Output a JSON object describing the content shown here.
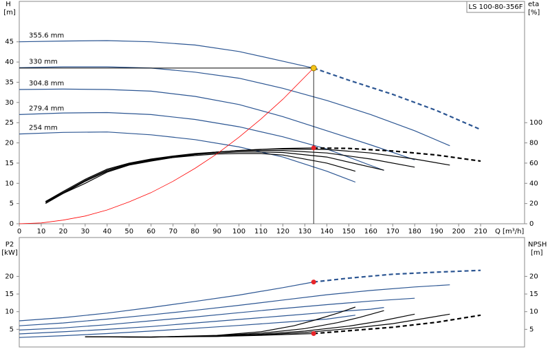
{
  "chart_data": [
    {
      "type": "line",
      "title": "LS 100-80-356F",
      "x_label": "Q [m³/h]",
      "y_label": "H",
      "y_unit": "[m]",
      "y2_label": "eta",
      "y2_unit": "[%]",
      "xlim": [
        0,
        230
      ],
      "xticks": [
        0,
        10,
        20,
        30,
        40,
        50,
        60,
        70,
        80,
        90,
        100,
        110,
        120,
        130,
        140,
        150,
        160,
        170,
        180,
        190,
        200,
        210
      ],
      "ylim": [
        0,
        55
      ],
      "yticks": [
        0,
        5,
        10,
        15,
        20,
        25,
        30,
        35,
        40,
        45
      ],
      "y2lim": [
        0,
        220
      ],
      "y2ticks": [
        0,
        20,
        40,
        60,
        80,
        100
      ],
      "grid": false,
      "duty_point": {
        "x": 134,
        "y": 38.5,
        "color": "#f5c518"
      },
      "markers": [
        {
          "x": 134,
          "value": 75,
          "axis": "y2",
          "color": "#e8262a"
        }
      ],
      "series": [
        {
          "name": "355.6 mm",
          "color": "#2b5592",
          "dash_start": 7,
          "x": [
            0,
            20,
            40,
            60,
            80,
            100,
            120,
            134,
            150,
            170,
            190,
            210
          ],
          "values": [
            45,
            45.2,
            45.3,
            45,
            44.2,
            42.6,
            40.2,
            38.5,
            35.5,
            32,
            28,
            23.3
          ]
        },
        {
          "name": "330 mm",
          "color": "#2b5592",
          "x": [
            0,
            20,
            40,
            60,
            80,
            100,
            120,
            140,
            160,
            180,
            196
          ],
          "values": [
            38.6,
            38.8,
            38.8,
            38.5,
            37.5,
            36,
            33.5,
            30.5,
            27,
            23,
            19.3
          ]
        },
        {
          "name": "304.8 mm",
          "color": "#2b5592",
          "x": [
            0,
            20,
            40,
            60,
            80,
            100,
            120,
            140,
            160,
            180
          ],
          "values": [
            33.2,
            33.3,
            33.2,
            32.8,
            31.5,
            29.5,
            26.5,
            23,
            19.5,
            15.8
          ]
        },
        {
          "name": "279.4 mm",
          "color": "#2b5592",
          "x": [
            0,
            20,
            40,
            60,
            80,
            100,
            120,
            140,
            166
          ],
          "values": [
            27,
            27.4,
            27.5,
            27,
            25.8,
            24,
            21.5,
            18.5,
            13.2
          ]
        },
        {
          "name": "254 mm",
          "color": "#2b5592",
          "x": [
            0,
            20,
            40,
            60,
            80,
            100,
            120,
            140,
            153
          ],
          "values": [
            22.2,
            22.6,
            22.7,
            22,
            20.8,
            19,
            16.5,
            13,
            10.3
          ]
        },
        {
          "color": "#000000",
          "axis": "y2",
          "dash_start": 12,
          "x": [
            14,
            20,
            30,
            40,
            50,
            60,
            70,
            80,
            90,
            100,
            110,
            120,
            134,
            150,
            170,
            190,
            210
          ],
          "values": [
            23,
            30,
            40,
            51,
            58,
            62,
            65.5,
            68.5,
            71,
            72.5,
            73.6,
            74.5,
            75,
            74.5,
            72,
            68,
            62
          ]
        },
        {
          "color": "#000000",
          "axis": "y2",
          "x": [
            12,
            20,
            30,
            40,
            50,
            60,
            70,
            80,
            90,
            100,
            110,
            120,
            140,
            160,
            180,
            196
          ],
          "values": [
            22,
            31,
            42,
            52,
            59,
            63,
            66,
            69,
            71,
            72.5,
            73.5,
            74,
            73.5,
            70,
            64,
            58
          ]
        },
        {
          "color": "#000000",
          "axis": "y2",
          "x": [
            12,
            20,
            30,
            40,
            50,
            60,
            70,
            80,
            90,
            100,
            110,
            120,
            140,
            160,
            180
          ],
          "values": [
            22,
            32,
            44,
            54,
            60,
            64,
            67,
            69.5,
            71,
            72,
            72.5,
            72.5,
            70,
            64,
            56
          ]
        },
        {
          "color": "#000000",
          "axis": "y2",
          "x": [
            12,
            20,
            30,
            40,
            50,
            60,
            70,
            80,
            90,
            100,
            110,
            120,
            140,
            166
          ],
          "values": [
            21,
            31,
            43,
            53,
            59.5,
            63.5,
            66.5,
            68.5,
            70,
            71,
            71,
            70.5,
            66,
            53
          ]
        },
        {
          "color": "#000000",
          "axis": "y2",
          "x": [
            12,
            20,
            30,
            40,
            50,
            60,
            70,
            80,
            90,
            100,
            110,
            120,
            140,
            153
          ],
          "values": [
            20,
            30,
            42,
            52,
            58.5,
            62.5,
            65.5,
            67.5,
            69,
            69.5,
            69.5,
            68,
            60,
            52
          ]
        },
        {
          "color": "#ff0000",
          "thin": true,
          "x": [
            0,
            10,
            20,
            30,
            40,
            50,
            60,
            70,
            80,
            90,
            100,
            110,
            120,
            134
          ],
          "values": [
            0,
            0.2,
            0.9,
            1.9,
            3.4,
            5.4,
            7.7,
            10.5,
            13.7,
            17.3,
            21.4,
            25.9,
            30.8,
            38.5
          ]
        }
      ]
    },
    {
      "type": "line",
      "y_label": "P2",
      "y_unit": "[kW]",
      "y2_label": "NPSH",
      "y2_unit": "[m]",
      "xlim": [
        0,
        230
      ],
      "ylim": [
        0,
        31
      ],
      "yticks": [
        5,
        10,
        15,
        20
      ],
      "y2lim": [
        0,
        31
      ],
      "y2ticks": [
        5,
        10,
        15,
        20
      ],
      "grid": false,
      "markers": [
        {
          "x": 134,
          "value": 18.4,
          "color": "#e8262a"
        },
        {
          "x": 134,
          "value": 3.8,
          "axis": "y2",
          "color": "#e8262a"
        }
      ],
      "series": [
        {
          "color": "#2b5592",
          "dash_start": 7,
          "x": [
            0,
            20,
            40,
            60,
            80,
            100,
            120,
            134,
            150,
            170,
            190,
            210
          ],
          "values": [
            7.4,
            8.3,
            9.6,
            11.2,
            12.9,
            14.7,
            16.8,
            18.4,
            19.5,
            20.6,
            21.2,
            21.7
          ]
        },
        {
          "color": "#2b5592",
          "x": [
            0,
            20,
            40,
            60,
            80,
            100,
            120,
            140,
            160,
            180,
            196
          ],
          "values": [
            6,
            6.8,
            7.9,
            9.1,
            10.4,
            11.8,
            13.3,
            14.8,
            16,
            17,
            17.6
          ]
        },
        {
          "color": "#2b5592",
          "x": [
            0,
            20,
            40,
            60,
            80,
            100,
            120,
            140,
            160,
            180
          ],
          "values": [
            4.8,
            5.4,
            6.3,
            7.4,
            8.5,
            9.7,
            10.9,
            12,
            13,
            13.8
          ]
        },
        {
          "color": "#2b5592",
          "x": [
            0,
            20,
            40,
            60,
            80,
            100,
            120,
            140,
            160,
            166
          ],
          "values": [
            3.7,
            4.3,
            5,
            5.8,
            6.8,
            7.8,
            8.8,
            9.8,
            10.7,
            11.2
          ]
        },
        {
          "color": "#2b5592",
          "x": [
            0,
            20,
            40,
            60,
            80,
            100,
            120,
            140,
            153
          ],
          "values": [
            2.7,
            3.2,
            3.8,
            4.5,
            5.3,
            6.1,
            7,
            7.9,
            9
          ]
        },
        {
          "color": "#000000",
          "axis": "y2",
          "dash_start": 5,
          "x": [
            30,
            50,
            70,
            90,
            110,
            134,
            150,
            170,
            190,
            210
          ],
          "values": [
            2.9,
            2.8,
            2.9,
            3,
            3.3,
            3.8,
            4.6,
            5.6,
            7,
            9
          ]
        },
        {
          "color": "#000000",
          "axis": "y2",
          "x": [
            30,
            60,
            90,
            110,
            130,
            150,
            170,
            196
          ],
          "values": [
            2.9,
            2.8,
            3,
            3.4,
            4.1,
            5.2,
            6.6,
            9.3
          ]
        },
        {
          "color": "#000000",
          "axis": "y2",
          "x": [
            30,
            60,
            90,
            110,
            130,
            150,
            165,
            180
          ],
          "values": [
            2.9,
            2.8,
            3.1,
            3.6,
            4.5,
            5.9,
            7.4,
            9.3
          ]
        },
        {
          "color": "#000000",
          "axis": "y2",
          "x": [
            30,
            60,
            90,
            110,
            130,
            145,
            155,
            166
          ],
          "values": [
            2.9,
            2.8,
            3.2,
            3.9,
            5.2,
            6.9,
            8.4,
            10.3
          ]
        },
        {
          "color": "#000000",
          "axis": "y2",
          "x": [
            30,
            60,
            90,
            110,
            125,
            135,
            145,
            153
          ],
          "values": [
            2.9,
            2.8,
            3.3,
            4.3,
            6,
            7.7,
            9.6,
            11.3
          ]
        }
      ]
    }
  ]
}
